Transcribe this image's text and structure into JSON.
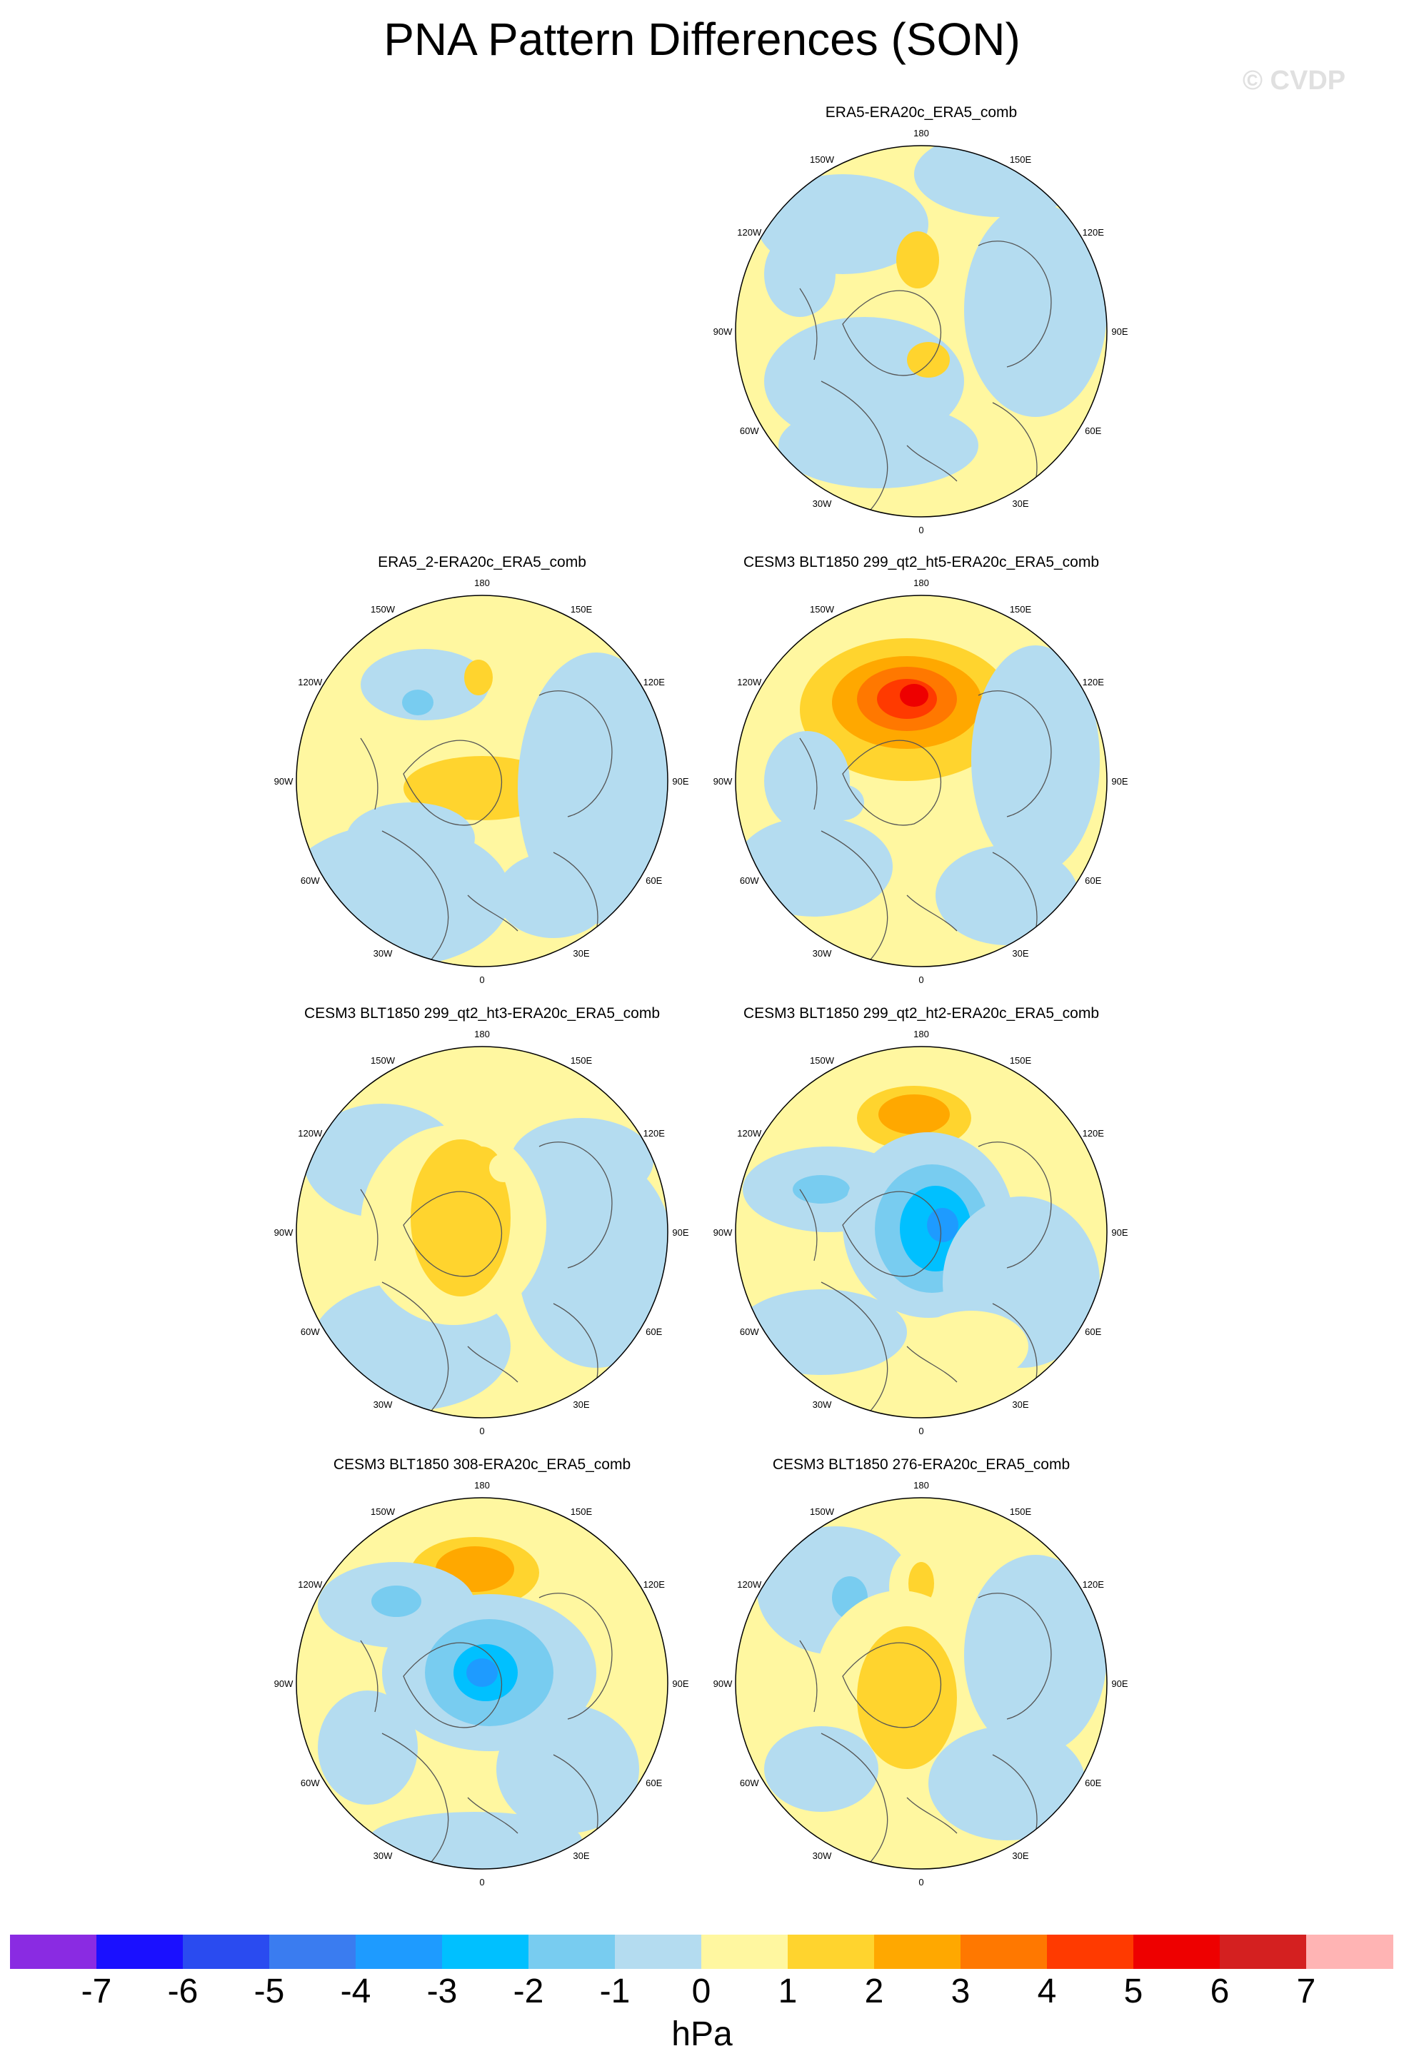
{
  "title": "PNA Pattern Differences (SON)",
  "watermark": "© CVDP",
  "lon_labels": [
    "180",
    "150E",
    "120E",
    "90E",
    "60E",
    "30E",
    "0",
    "30W",
    "60W",
    "90W",
    "120W",
    "150W"
  ],
  "colors": {
    "land_outline": "#555555",
    "map_border": "#000000",
    "neg1": "#b4dcf0",
    "pos1": "#fff7a0"
  },
  "panels": [
    {
      "title": "ERA5-ERA20c_ERA5_comb"
    },
    {
      "title": "ERA5_2-ERA20c_ERA5_comb"
    },
    {
      "title": "CESM3 BLT1850 299_qt2_ht5-ERA20c_ERA5_comb"
    },
    {
      "title": "CESM3 BLT1850 299_qt2_ht3-ERA20c_ERA5_comb"
    },
    {
      "title": "CESM3 BLT1850 299_qt2_ht2-ERA20c_ERA5_comb"
    },
    {
      "title": "CESM3 BLT1850 308-ERA20c_ERA5_comb"
    },
    {
      "title": "CESM3 BLT1850 276-ERA20c_ERA5_comb"
    }
  ],
  "colorbar": {
    "units": "hPa",
    "tick_labels": [
      "-7",
      "-6",
      "-5",
      "-4",
      "-3",
      "-2",
      "-1",
      "0",
      "1",
      "2",
      "3",
      "4",
      "5",
      "6",
      "7"
    ],
    "colors": [
      "#8a2be2",
      "#1a10ff",
      "#2a4bf0",
      "#3a7cf0",
      "#1e9bff",
      "#00c0ff",
      "#78ccf0",
      "#b4dcf0",
      "#fff7a0",
      "#ffd42e",
      "#ffa800",
      "#ff7800",
      "#ff3a00",
      "#ee0000",
      "#d42020",
      "#ffb4b4"
    ]
  }
}
